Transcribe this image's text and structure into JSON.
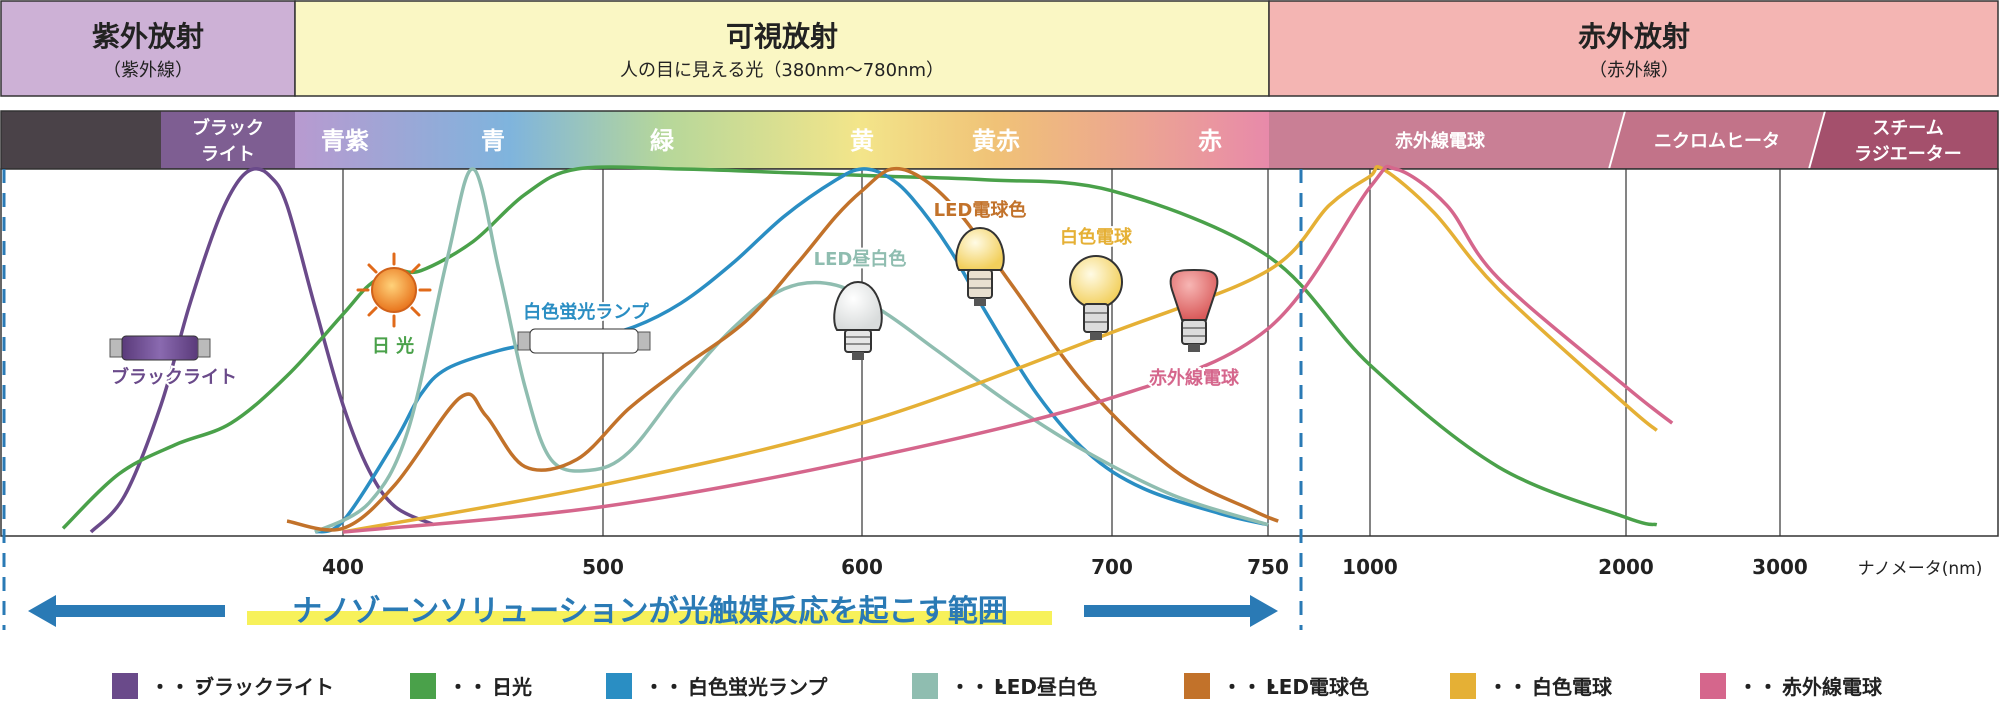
{
  "bands": [
    {
      "key": "uv",
      "title": "紫外放射",
      "sub": "（紫外線）",
      "color": "#cdb1d6"
    },
    {
      "key": "vis",
      "title": "可視放射",
      "sub": "人の目に見える光（380nm〜780nm）",
      "color": "#faf7c4"
    },
    {
      "key": "ir",
      "title": "赤外放射",
      "sub": "（赤外線）",
      "color": "#f4b5b3"
    }
  ],
  "strip_labels": {
    "blacklight": [
      "ブラック",
      "ライト"
    ],
    "ir_bulb": "赤外線電球",
    "nichrome": "ニクロムヒータ",
    "steam": [
      "スチーム",
      "ラジエーター"
    ]
  },
  "visible_colors": [
    {
      "label": "青紫",
      "color": "#a98cc0"
    },
    {
      "label": "青",
      "color": "#6aa8d6"
    },
    {
      "label": "緑",
      "color": "#9fca8a"
    },
    {
      "label": "黄",
      "color": "#e7cc4f"
    },
    {
      "label": "黄赤",
      "color": "#eba262"
    },
    {
      "label": "赤",
      "color": "#e0789a"
    }
  ],
  "annotations": {
    "sun": "日 光",
    "blacklight_lamp": "ブラックライト",
    "fluorescent": "白色蛍光ランプ",
    "led_daylight": "LED昼白色",
    "led_bulb": "LED電球色",
    "incandescent": "白色電球",
    "ir_bulb": "赤外線電球"
  },
  "range_text": "ナノゾーンソリューションが光触媒反応を起こす範囲",
  "chart_data": {
    "type": "line",
    "title": "",
    "xlabel": "ナノメータ(nm)",
    "ylabel": "",
    "x_scale": "piecewise",
    "x_ticks": [
      400,
      500,
      600,
      700,
      750,
      1000,
      2000,
      3000
    ],
    "ylim": [
      0,
      1
    ],
    "grid": true,
    "legend_position": "bottom",
    "series": [
      {
        "name": "ブラックライト",
        "color": "#6a4a8a",
        "points": [
          [
            310,
            0
          ],
          [
            322,
            0.1
          ],
          [
            335,
            0.35
          ],
          [
            345,
            0.62
          ],
          [
            355,
            0.85
          ],
          [
            362,
            0.96
          ],
          [
            368,
            1.0
          ],
          [
            374,
            0.98
          ],
          [
            380,
            0.9
          ],
          [
            390,
            0.62
          ],
          [
            400,
            0.35
          ],
          [
            410,
            0.17
          ],
          [
            420,
            0.07
          ],
          [
            435,
            0.02
          ]
        ]
      },
      {
        "name": "日光",
        "color": "#4aa14a",
        "points": [
          [
            300,
            0.01
          ],
          [
            320,
            0.16
          ],
          [
            340,
            0.24
          ],
          [
            360,
            0.3
          ],
          [
            380,
            0.43
          ],
          [
            400,
            0.6
          ],
          [
            410,
            0.68
          ],
          [
            420,
            0.72
          ],
          [
            430,
            0.72
          ],
          [
            450,
            0.8
          ],
          [
            470,
            0.93
          ],
          [
            490,
            1.0
          ],
          [
            530,
            1.0
          ],
          [
            570,
            0.99
          ],
          [
            610,
            0.98
          ],
          [
            650,
            0.97
          ],
          [
            700,
            0.94
          ],
          [
            750,
            0.76
          ],
          [
            1000,
            0.46
          ],
          [
            1500,
            0.18
          ],
          [
            2000,
            0.04
          ],
          [
            2200,
            0.02
          ]
        ]
      },
      {
        "name": "白色蛍光ランプ",
        "color": "#2a8ec3",
        "points": [
          [
            390,
            0
          ],
          [
            400,
            0.03
          ],
          [
            420,
            0.25
          ],
          [
            430,
            0.38
          ],
          [
            440,
            0.45
          ],
          [
            460,
            0.5
          ],
          [
            475,
            0.52
          ],
          [
            490,
            0.53
          ],
          [
            510,
            0.56
          ],
          [
            530,
            0.63
          ],
          [
            550,
            0.74
          ],
          [
            570,
            0.87
          ],
          [
            590,
            0.97
          ],
          [
            600,
            1.0
          ],
          [
            610,
            0.98
          ],
          [
            620,
            0.92
          ],
          [
            635,
            0.78
          ],
          [
            650,
            0.6
          ],
          [
            670,
            0.38
          ],
          [
            690,
            0.22
          ],
          [
            710,
            0.12
          ],
          [
            735,
            0.05
          ],
          [
            750,
            0.02
          ]
        ]
      },
      {
        "name": "LED昼白色",
        "color": "#8fbdb0",
        "points": [
          [
            390,
            0
          ],
          [
            410,
            0.08
          ],
          [
            425,
            0.28
          ],
          [
            440,
            0.75
          ],
          [
            450,
            1.0
          ],
          [
            460,
            0.72
          ],
          [
            470,
            0.4
          ],
          [
            480,
            0.2
          ],
          [
            495,
            0.17
          ],
          [
            510,
            0.22
          ],
          [
            530,
            0.4
          ],
          [
            550,
            0.56
          ],
          [
            570,
            0.67
          ],
          [
            590,
            0.68
          ],
          [
            610,
            0.6
          ],
          [
            630,
            0.5
          ],
          [
            660,
            0.35
          ],
          [
            690,
            0.22
          ],
          [
            720,
            0.1
          ],
          [
            750,
            0.02
          ]
        ]
      },
      {
        "name": "LED電球色",
        "color": "#c2722a",
        "points": [
          [
            380,
            0.03
          ],
          [
            400,
            0.01
          ],
          [
            420,
            0.13
          ],
          [
            445,
            0.37
          ],
          [
            455,
            0.32
          ],
          [
            470,
            0.18
          ],
          [
            490,
            0.2
          ],
          [
            510,
            0.34
          ],
          [
            530,
            0.45
          ],
          [
            555,
            0.58
          ],
          [
            575,
            0.74
          ],
          [
            590,
            0.87
          ],
          [
            600,
            0.94
          ],
          [
            612,
            1.0
          ],
          [
            625,
            0.97
          ],
          [
            640,
            0.87
          ],
          [
            660,
            0.68
          ],
          [
            690,
            0.4
          ],
          [
            720,
            0.17
          ],
          [
            745,
            0.06
          ],
          [
            775,
            0.03
          ]
        ]
      },
      {
        "name": "白色電球",
        "color": "#e5b035",
        "points": [
          [
            400,
            0
          ],
          [
            500,
            0.13
          ],
          [
            600,
            0.3
          ],
          [
            700,
            0.55
          ],
          [
            750,
            0.72
          ],
          [
            900,
            0.9
          ],
          [
            1000,
            0.98
          ],
          [
            1050,
            1.0
          ],
          [
            1250,
            0.88
          ],
          [
            1500,
            0.67
          ],
          [
            2000,
            0.35
          ],
          [
            2200,
            0.28
          ]
        ]
      },
      {
        "name": "赤外線電球",
        "color": "#d5668c",
        "points": [
          [
            400,
            0
          ],
          [
            500,
            0.07
          ],
          [
            600,
            0.2
          ],
          [
            700,
            0.37
          ],
          [
            750,
            0.56
          ],
          [
            1000,
            0.95
          ],
          [
            1100,
            1.0
          ],
          [
            1300,
            0.9
          ],
          [
            1500,
            0.7
          ],
          [
            2000,
            0.4
          ],
          [
            2300,
            0.3
          ]
        ]
      }
    ]
  }
}
